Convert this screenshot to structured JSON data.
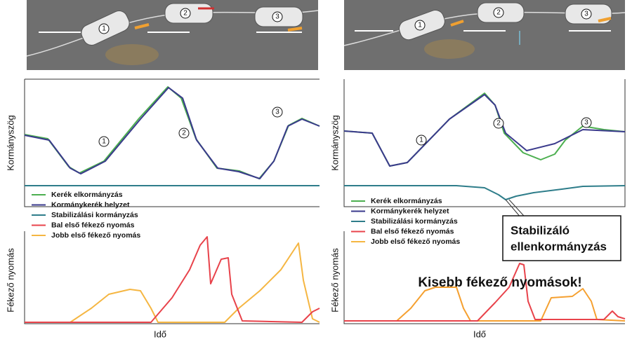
{
  "panels": [
    {
      "scene_labels": [
        "1",
        "2",
        "3"
      ],
      "curve_markers": [
        "1",
        "2",
        "3"
      ],
      "steering_axis_label": "Kormányszög",
      "brake_axis_label": "Fékező nyomás",
      "time_axis_label": "Idő",
      "legend": [
        "Kerék elkormányzás",
        "Kormánykerék helyzet",
        "Stabilizálási kormányzás",
        "Bal első fékező nyomás",
        "Jobb első fékező nyomás"
      ]
    },
    {
      "scene_labels": [
        "1",
        "2",
        "3"
      ],
      "curve_markers": [
        "1",
        "2",
        "3"
      ],
      "steering_axis_label": "Kormányszög",
      "brake_axis_label": "Fékező nyomás",
      "time_axis_label": "Idő",
      "legend": [
        "Kerék elkormányzás",
        "Kormánykerék helyzet",
        "Stabilizálási kormányzás",
        "Bal első fékező nyomás",
        "Jobb első fékező nyomás"
      ],
      "callout": [
        "Stabilizáló",
        "ellenkormányzás"
      ],
      "note": "Kisebb fékező nyomások!"
    }
  ]
}
